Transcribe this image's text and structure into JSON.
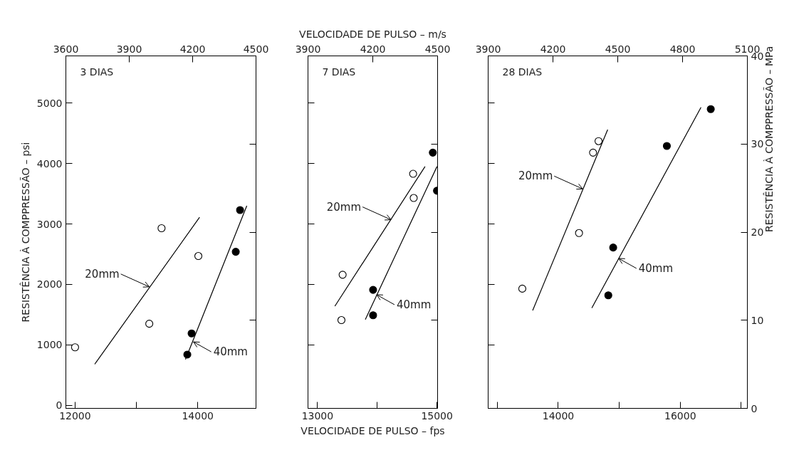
{
  "chart_data": [
    {
      "type": "scatter",
      "title": "3 DIAS",
      "ylabel": "RESISTÊNCIA À COMPPRESSÃO – psi",
      "line_style": "solid",
      "xlim": [
        11850,
        14950
      ],
      "xticks": [
        12000,
        {
          "value": 13000,
          "label": null
        },
        14000
      ],
      "x2lim": [
        3600,
        4500
      ],
      "x2ticks": [
        3600,
        3900,
        4200,
        4500
      ],
      "ylim": [
        -50,
        5780
      ],
      "yticks": [
        0,
        1000,
        2000,
        3000,
        4000,
        5000
      ],
      "series": [
        {
          "marker": "circle",
          "color": "#000000",
          "x": [
            12000,
            13210,
            13410,
            14010
          ],
          "values": [
            960,
            1350,
            2930,
            2470
          ]
        },
        {
          "marker": "circle",
          "color": "#000000",
          "x": [
            13830,
            13900,
            14620,
            14690
          ],
          "values": [
            840,
            1190,
            2540,
            3230
          ]
        },
        {
          "type": "line",
          "color": "#000000",
          "x": [
            12320,
            14030
          ],
          "values": [
            680,
            3110
          ]
        },
        {
          "type": "line",
          "color": "#000000",
          "x": [
            13800,
            14800
          ],
          "values": [
            760,
            3300
          ]
        }
      ],
      "annotations": [
        {
          "text": "20mm",
          "x": 13210,
          "y": 1960
        },
        {
          "text": "40mm",
          "x": 13930,
          "y": 1050
        }
      ]
    },
    {
      "type": "scatter",
      "title": "7 DIAS",
      "xlabel": "VELOCIDADE DE PULSO – fps",
      "x2label": "VELOCIDADE DE PULSO – m/s",
      "line_style": "solid",
      "tick_labels": "x",
      "xlim": [
        12840,
        15010
      ],
      "xticks": [
        13000,
        {
          "value": 14000,
          "label": null
        },
        15000
      ],
      "x2lim": [
        3900,
        4500
      ],
      "x2ticks": [
        3900,
        4200,
        4500
      ],
      "ylim": [
        -50,
        5780
      ],
      "series": [
        {
          "marker": "circle",
          "color": "#000000",
          "x": [
            13400,
            13420,
            14600,
            14610
          ],
          "values": [
            1410,
            2160,
            3830,
            3430
          ]
        },
        {
          "marker": "circle",
          "color": "#000000",
          "x": [
            13930,
            13930,
            14930,
            15000
          ],
          "values": [
            1490,
            1910,
            4180,
            3550
          ]
        },
        {
          "type": "line",
          "color": "#000000",
          "x": [
            13290,
            14800
          ],
          "values": [
            1640,
            3950
          ]
        },
        {
          "type": "line",
          "color": "#000000",
          "x": [
            13800,
            15000
          ],
          "values": [
            1420,
            3950
          ]
        }
      ],
      "annotations": [
        {
          "text": "20mm",
          "x": 14230,
          "y": 3070
        },
        {
          "text": "40mm",
          "x": 13990,
          "y": 1830
        }
      ]
    },
    {
      "type": "scatter",
      "title": "28 DIAS",
      "y2label": "RESISTÊNCIA À COMPPRESSÃO – MPa",
      "line_style": "solid",
      "xlim": [
        12850,
        17100
      ],
      "xticks": [
        {
          "value": 13000,
          "label": null
        },
        14000,
        {
          "value": 15000,
          "label": null
        },
        16000,
        {
          "value": 17000,
          "label": null
        }
      ],
      "x2lim": [
        3900,
        5100
      ],
      "x2ticks": [
        3900,
        4200,
        4500,
        4800,
        5100
      ],
      "ylim": [
        -50,
        5780
      ],
      "y2lim": [
        0,
        40
      ],
      "y2ticks": [
        0,
        10,
        20,
        30,
        40
      ],
      "series": [
        {
          "marker": "circle",
          "color": "#000000",
          "x": [
            13410,
            14340,
            14570,
            14660
          ],
          "values": [
            1930,
            2850,
            4180,
            4370
          ]
        },
        {
          "marker": "circle",
          "color": "#000000",
          "x": [
            14820,
            14900,
            15780,
            16500
          ],
          "values": [
            1820,
            2610,
            4290,
            4900
          ]
        },
        {
          "type": "line",
          "color": "#000000",
          "x": [
            13580,
            14810
          ],
          "values": [
            1570,
            4560
          ]
        },
        {
          "type": "line",
          "color": "#000000",
          "x": [
            14550,
            16340
          ],
          "values": [
            1610,
            4930
          ]
        }
      ],
      "annotations": [
        {
          "text": "20mm",
          "x": 14400,
          "y": 3580
        },
        {
          "text": "40mm",
          "x": 14990,
          "y": 2430
        }
      ]
    }
  ]
}
